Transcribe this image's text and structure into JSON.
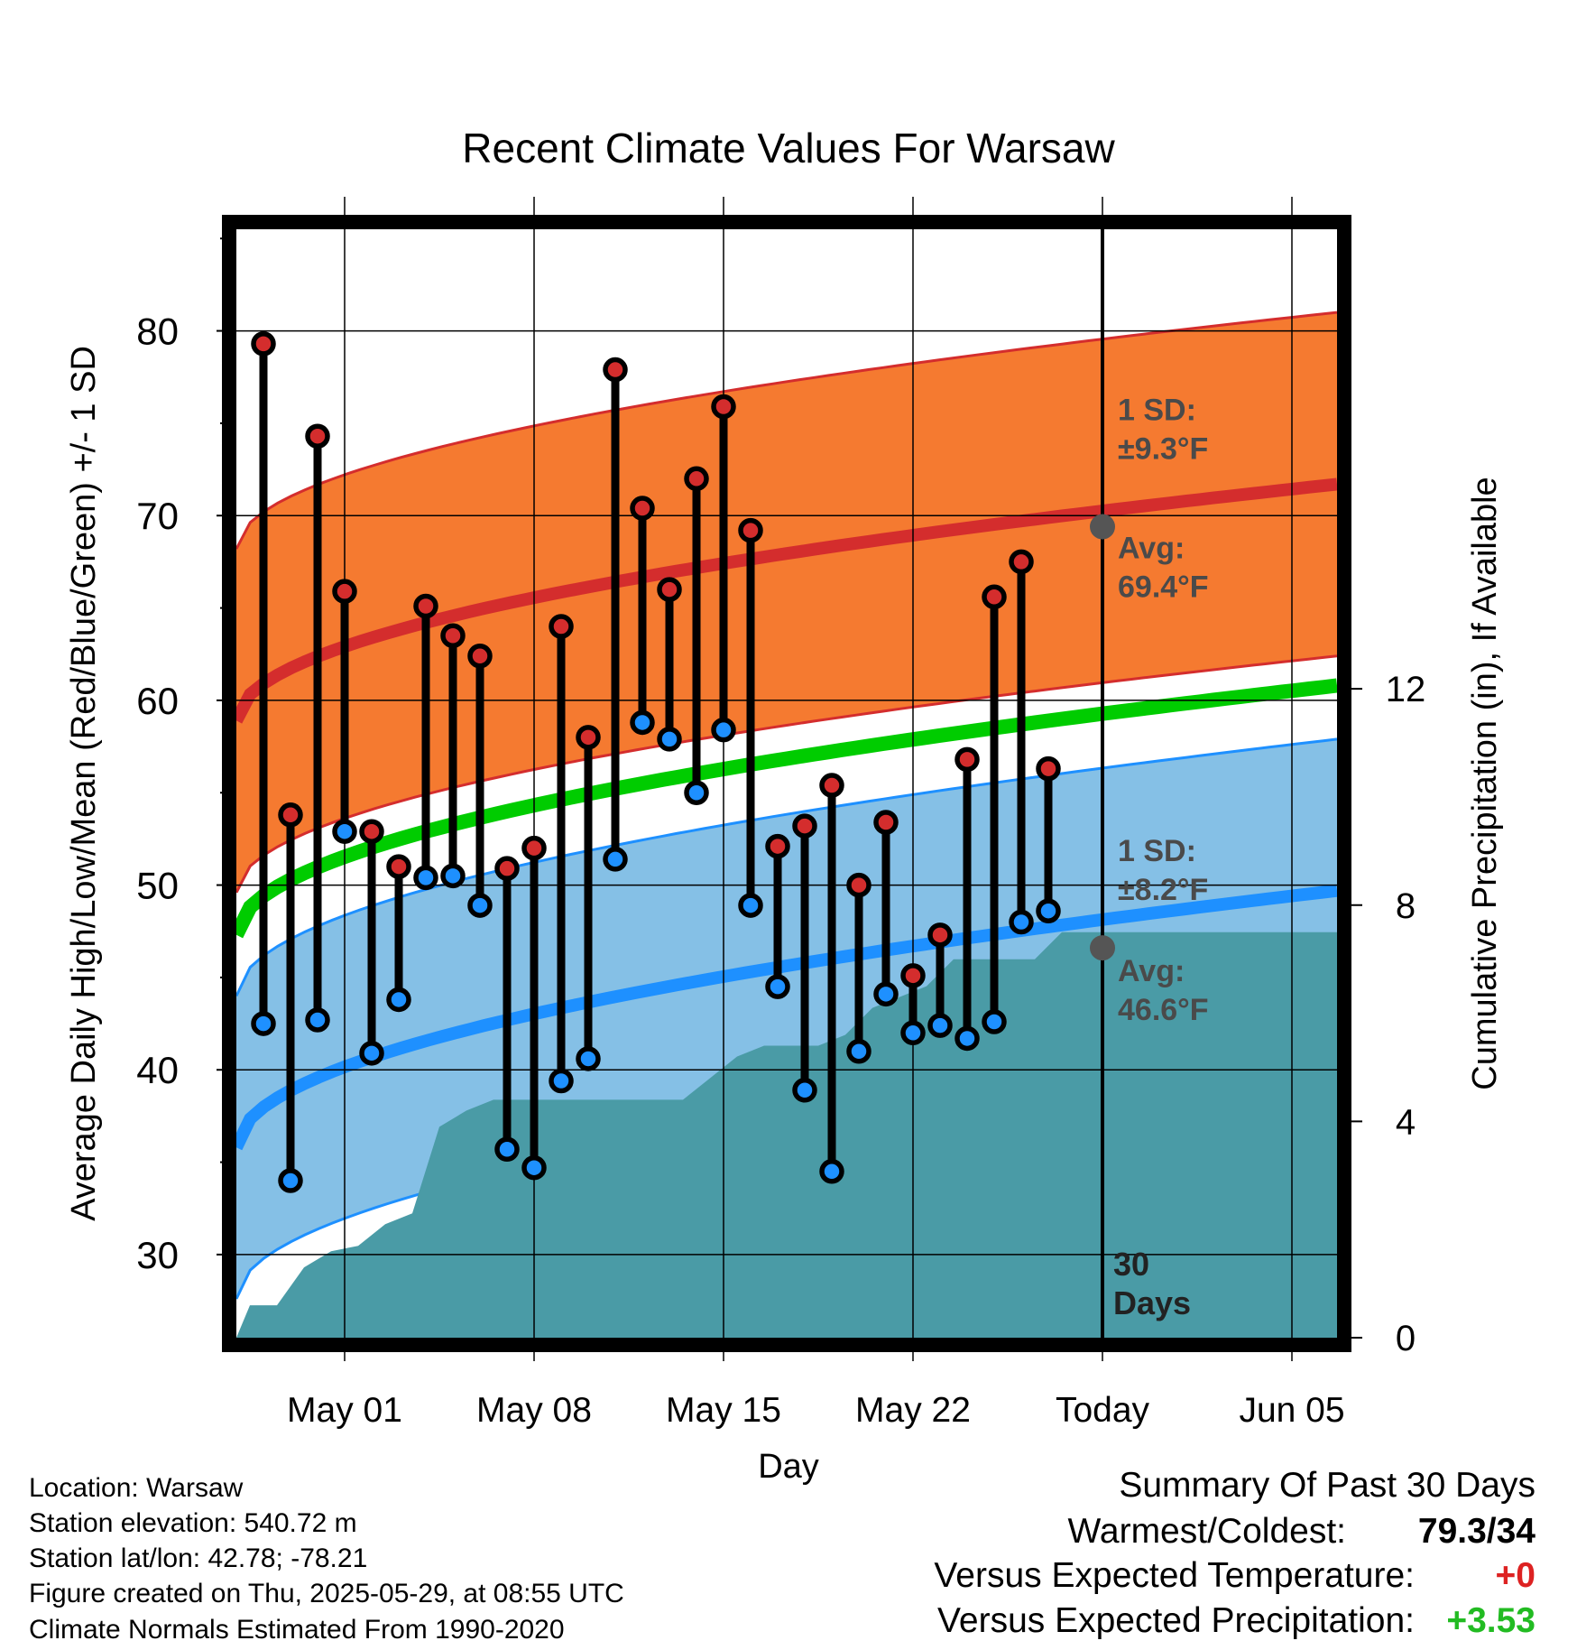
{
  "chart_data": {
    "type": "range",
    "title": "Recent Climate Values For Warsaw",
    "xlabel": "Day",
    "ylabel": "Average Daily High/Low/Mean (Red/Blue/Green) +/- 1 SD",
    "y2label": "Cumulative Precipitation (in), If Available",
    "x_range": [
      "2025-04-27",
      "2025-06-08"
    ],
    "ylim": [
      25.5,
      85.5
    ],
    "y2lim": [
      0,
      20.5
    ],
    "y_ticks": [
      30,
      40,
      50,
      60,
      70,
      80
    ],
    "y2_ticks": [
      0,
      4,
      8,
      12
    ],
    "x_ticks": [
      {
        "date": "2025-05-01",
        "label": "May 01"
      },
      {
        "date": "2025-05-08",
        "label": "May 08"
      },
      {
        "date": "2025-05-15",
        "label": "May 15"
      },
      {
        "date": "2025-05-22",
        "label": "May 22"
      },
      {
        "date": "2025-05-29",
        "label": "Today"
      },
      {
        "date": "2025-06-05",
        "label": "Jun 05"
      }
    ],
    "today": "2025-05-29",
    "window_label": "30 Days",
    "grid": true,
    "colors": {
      "high": "#d42d2d",
      "high_band": "#f57a30",
      "low": "#1e90ff",
      "low_band": "#85c0e6",
      "mean": "#00cc00",
      "precip": "#4a9ba6"
    },
    "normal_high": {
      "start": 58.9,
      "end": 71.7,
      "sd": 9.3
    },
    "normal_low": {
      "start": 35.8,
      "end": 49.7,
      "sd": 8.2
    },
    "normal_mean": {
      "start": 47.3,
      "end": 60.8
    },
    "today_markers": [
      {
        "value": 69.4,
        "sd_label": "1 SD:",
        "sd_value": "±9.3°F",
        "avg_label": "Avg:",
        "avg_value": "69.4°F"
      },
      {
        "value": 46.6,
        "sd_label": "1 SD:",
        "sd_value": "±8.2°F",
        "avg_label": "Avg:",
        "avg_value": "46.6°F"
      }
    ],
    "daily": [
      {
        "date": "2025-04-28",
        "high": 79.3,
        "low": 42.5
      },
      {
        "date": "2025-04-29",
        "high": 53.8,
        "low": 34.0
      },
      {
        "date": "2025-04-30",
        "high": 74.3,
        "low": 42.7
      },
      {
        "date": "2025-05-01",
        "high": 65.9,
        "low": 52.9
      },
      {
        "date": "2025-05-02",
        "high": 52.9,
        "low": 40.9
      },
      {
        "date": "2025-05-03",
        "high": 51.0,
        "low": 43.8
      },
      {
        "date": "2025-05-04",
        "high": 65.1,
        "low": 50.4
      },
      {
        "date": "2025-05-05",
        "high": 63.5,
        "low": 50.5
      },
      {
        "date": "2025-05-06",
        "high": 62.4,
        "low": 48.9
      },
      {
        "date": "2025-05-07",
        "high": 50.9,
        "low": 35.7
      },
      {
        "date": "2025-05-08",
        "high": 52.0,
        "low": 34.7
      },
      {
        "date": "2025-05-09",
        "high": 64.0,
        "low": 39.4
      },
      {
        "date": "2025-05-10",
        "high": 58.0,
        "low": 40.6
      },
      {
        "date": "2025-05-11",
        "high": 77.9,
        "low": 51.4
      },
      {
        "date": "2025-05-12",
        "high": 70.4,
        "low": 58.8
      },
      {
        "date": "2025-05-13",
        "high": 66.0,
        "low": 57.9
      },
      {
        "date": "2025-05-14",
        "high": 72.0,
        "low": 55.0
      },
      {
        "date": "2025-05-15",
        "high": 75.9,
        "low": 58.4
      },
      {
        "date": "2025-05-16",
        "high": 69.2,
        "low": 48.9
      },
      {
        "date": "2025-05-17",
        "high": 52.1,
        "low": 44.5
      },
      {
        "date": "2025-05-18",
        "high": 53.2,
        "low": 38.9
      },
      {
        "date": "2025-05-19",
        "high": 55.4,
        "low": 34.5
      },
      {
        "date": "2025-05-20",
        "high": 50.0,
        "low": 41.0
      },
      {
        "date": "2025-05-21",
        "high": 53.4,
        "low": 44.1
      },
      {
        "date": "2025-05-22",
        "high": 45.1,
        "low": 42.0
      },
      {
        "date": "2025-05-23",
        "high": 47.3,
        "low": 42.4
      },
      {
        "date": "2025-05-24",
        "high": 56.8,
        "low": 41.7
      },
      {
        "date": "2025-05-25",
        "high": 65.6,
        "low": 42.6
      },
      {
        "date": "2025-05-26",
        "high": 67.5,
        "low": 48.0
      },
      {
        "date": "2025-05-27",
        "high": 56.3,
        "low": 48.6
      }
    ],
    "precip_cumulative": [
      {
        "date": "2025-04-27",
        "value": 0.0
      },
      {
        "date": "2025-04-27.5",
        "value": 0.6
      },
      {
        "date": "2025-04-28.5",
        "value": 0.6
      },
      {
        "date": "2025-04-29.5",
        "value": 1.3
      },
      {
        "date": "2025-04-30.5",
        "value": 1.6
      },
      {
        "date": "2025-05-01.5",
        "value": 1.7
      },
      {
        "date": "2025-05-02.5",
        "value": 2.1
      },
      {
        "date": "2025-05-03.5",
        "value": 2.3
      },
      {
        "date": "2025-05-04.5",
        "value": 3.9
      },
      {
        "date": "2025-05-05.5",
        "value": 4.2
      },
      {
        "date": "2025-05-06.5",
        "value": 4.4
      },
      {
        "date": "2025-05-13.5",
        "value": 4.4
      },
      {
        "date": "2025-05-14.5",
        "value": 4.8
      },
      {
        "date": "2025-05-15.5",
        "value": 5.2
      },
      {
        "date": "2025-05-16.5",
        "value": 5.4
      },
      {
        "date": "2025-05-18.5",
        "value": 5.4
      },
      {
        "date": "2025-05-19.5",
        "value": 5.6
      },
      {
        "date": "2025-05-20.5",
        "value": 6.1
      },
      {
        "date": "2025-05-21.5",
        "value": 6.3
      },
      {
        "date": "2025-05-22.5",
        "value": 6.5
      },
      {
        "date": "2025-05-23.5",
        "value": 7.0
      },
      {
        "date": "2025-05-24.5",
        "value": 7.0
      },
      {
        "date": "2025-05-25.5",
        "value": 7.0
      },
      {
        "date": "2025-05-26.5",
        "value": 7.0
      },
      {
        "date": "2025-05-27.5",
        "value": 7.5
      },
      {
        "date": "2025-06-08",
        "value": 7.5
      }
    ]
  },
  "info": {
    "location": "Location: Warsaw",
    "elevation": "Station elevation: 540.72 m",
    "latlon": "Station lat/lon: 42.78; -78.21",
    "created": "Figure created on Thu, 2025-05-29, at 08:55 UTC",
    "normals": "Climate Normals Estimated From 1990-2020"
  },
  "summary": {
    "title": "Summary Of Past 30 Days",
    "warmest_coldest_label": "Warmest/Coldest:",
    "warmest_coldest_value": "79.3/34",
    "temp_label": "Versus Expected Temperature:",
    "temp_value": "+0",
    "temp_color": "#dd2222",
    "precip_label": "Versus Expected Precipitation:",
    "precip_value": "+3.53",
    "precip_color": "#22bb22"
  }
}
